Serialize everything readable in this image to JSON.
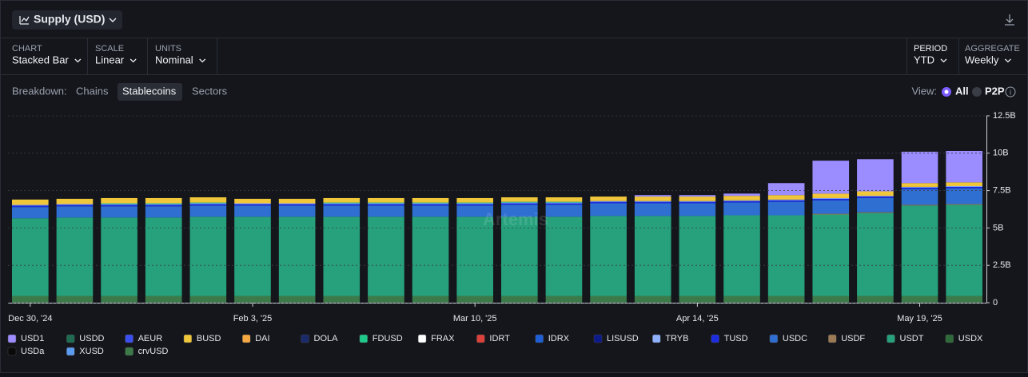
{
  "ui": {
    "title": "Supply (USD)",
    "controls": [
      {
        "label": "CHART",
        "value": "Stacked Bar"
      },
      {
        "label": "SCALE",
        "value": "Linear"
      },
      {
        "label": "UNITS",
        "value": "Nominal"
      },
      {
        "label": "PERIOD",
        "value": "YTD"
      },
      {
        "label": "AGGREGATE",
        "value": "Weekly"
      }
    ],
    "breakdown_label": "Breakdown:",
    "breakdown_options": [
      "Chains",
      "Stablecoins",
      "Sectors"
    ],
    "view_label": "View:",
    "view_options": [
      "All",
      "P2P"
    ],
    "watermark": "Artemis"
  },
  "chart_data": {
    "type": "stacked_bar",
    "categories": [
      "Dec 30, '24",
      null,
      null,
      null,
      null,
      "Feb 3, '25",
      null,
      null,
      null,
      null,
      "Mar 10, '25",
      null,
      null,
      null,
      null,
      "Apr 14, '25",
      null,
      null,
      null,
      null,
      "May 19, '25",
      null
    ],
    "ylim": [
      0,
      12.5
    ],
    "yticks": [
      0,
      {
        "value": 2.5,
        "label": "2.5B"
      },
      {
        "value": 5,
        "label": "5B"
      },
      {
        "value": 7.5,
        "label": "7.5B"
      },
      {
        "value": 10,
        "label": "10B"
      },
      {
        "value": 12.5,
        "label": "12.5B"
      }
    ],
    "grid": true,
    "series": [
      {
        "name": "USD1",
        "color": "#9b8cff",
        "values": [
          0,
          0,
          0,
          0,
          0,
          0,
          0,
          0,
          0,
          0,
          0,
          0,
          0,
          0,
          0.1,
          0.1,
          0.15,
          0.8,
          2.2,
          2.15,
          2.1,
          2.1
        ]
      },
      {
        "name": "USDD",
        "color": "#1f6b52",
        "values": [
          0,
          0,
          0,
          0,
          0,
          0,
          0,
          0,
          0,
          0,
          0,
          0,
          0,
          0,
          0,
          0,
          0,
          0,
          0,
          0,
          0,
          0
        ]
      },
      {
        "name": "AEUR",
        "color": "#3b4ff0",
        "values": [
          0,
          0,
          0,
          0,
          0,
          0,
          0,
          0,
          0,
          0,
          0,
          0,
          0,
          0,
          0,
          0,
          0,
          0,
          0,
          0,
          0,
          0
        ]
      },
      {
        "name": "BUSD",
        "color": "#f0c63b",
        "values": [
          0.35,
          0.35,
          0.35,
          0.35,
          0.35,
          0.3,
          0.3,
          0.3,
          0.3,
          0.3,
          0.3,
          0.3,
          0.3,
          0.3,
          0.3,
          0.3,
          0.3,
          0.3,
          0.3,
          0.3,
          0.25,
          0.25
        ]
      },
      {
        "name": "DAI",
        "color": "#f5a742",
        "values": [
          0,
          0,
          0,
          0,
          0,
          0,
          0,
          0,
          0,
          0,
          0,
          0,
          0,
          0,
          0,
          0,
          0,
          0,
          0,
          0,
          0,
          0
        ]
      },
      {
        "name": "DOLA",
        "color": "#1a2a6b",
        "values": [
          0,
          0,
          0,
          0,
          0,
          0,
          0,
          0,
          0,
          0,
          0,
          0,
          0,
          0,
          0,
          0,
          0,
          0,
          0,
          0,
          0,
          0
        ]
      },
      {
        "name": "FDUSD",
        "color": "#1ec98a",
        "values": [
          0,
          0,
          0.05,
          0.05,
          0.05,
          0,
          0,
          0.05,
          0.05,
          0.05,
          0.05,
          0.05,
          0.05,
          0,
          0,
          0,
          0,
          0,
          0,
          0,
          0,
          0
        ]
      },
      {
        "name": "FRAX",
        "color": "#ffffff",
        "values": [
          0,
          0,
          0,
          0,
          0,
          0,
          0,
          0,
          0,
          0,
          0,
          0,
          0,
          0,
          0,
          0,
          0,
          0,
          0,
          0,
          0,
          0
        ]
      },
      {
        "name": "IDRT",
        "color": "#d9413a",
        "values": [
          0,
          0,
          0,
          0,
          0,
          0,
          0,
          0,
          0,
          0,
          0,
          0,
          0,
          0,
          0,
          0,
          0,
          0,
          0,
          0,
          0,
          0
        ]
      },
      {
        "name": "IDRX",
        "color": "#1f5fd6",
        "values": [
          0,
          0,
          0,
          0,
          0,
          0,
          0,
          0,
          0,
          0,
          0,
          0,
          0,
          0,
          0,
          0,
          0,
          0,
          0,
          0,
          0,
          0
        ]
      },
      {
        "name": "LISUSD",
        "color": "#0c1a8a",
        "values": [
          0,
          0,
          0,
          0,
          0,
          0,
          0,
          0,
          0,
          0,
          0,
          0,
          0,
          0,
          0,
          0,
          0,
          0,
          0,
          0,
          0,
          0
        ]
      },
      {
        "name": "TRYB",
        "color": "#8fb0ff",
        "values": [
          0.05,
          0.05,
          0.05,
          0.05,
          0.05,
          0.05,
          0.05,
          0.05,
          0.05,
          0.05,
          0.05,
          0.05,
          0.05,
          0.05,
          0.05,
          0.05,
          0.05,
          0.05,
          0.05,
          0.05,
          0.05,
          0.05
        ]
      },
      {
        "name": "TUSD",
        "color": "#1c2de0",
        "values": [
          0.1,
          0.1,
          0.1,
          0.1,
          0.1,
          0.1,
          0.1,
          0.1,
          0.1,
          0.1,
          0.1,
          0.1,
          0.1,
          0.1,
          0.1,
          0.1,
          0.1,
          0.1,
          0.1,
          0.1,
          0.1,
          0.1
        ]
      },
      {
        "name": "USDC",
        "color": "#2f6fd1",
        "values": [
          0.75,
          0.75,
          0.75,
          0.75,
          0.75,
          0.75,
          0.75,
          0.75,
          0.75,
          0.75,
          0.75,
          0.8,
          0.8,
          0.85,
          0.85,
          0.85,
          0.85,
          0.9,
          0.9,
          0.95,
          1.05,
          1.05
        ]
      },
      {
        "name": "USDF",
        "color": "#9c7a55",
        "values": [
          0,
          0,
          0,
          0,
          0,
          0,
          0,
          0,
          0,
          0,
          0,
          0,
          0,
          0,
          0,
          0,
          0,
          0,
          0.05,
          0.05,
          0.05,
          0.05
        ]
      },
      {
        "name": "USDT",
        "color": "#26a17b",
        "values": [
          5.2,
          5.25,
          5.25,
          5.25,
          5.3,
          5.3,
          5.3,
          5.3,
          5.3,
          5.3,
          5.3,
          5.3,
          5.3,
          5.35,
          5.35,
          5.35,
          5.4,
          5.4,
          5.45,
          5.55,
          6.05,
          6.1
        ]
      },
      {
        "name": "USDX",
        "color": "#2f6b3a",
        "values": [
          0,
          0,
          0,
          0,
          0,
          0,
          0,
          0,
          0,
          0,
          0,
          0,
          0,
          0,
          0,
          0,
          0,
          0,
          0,
          0,
          0,
          0
        ]
      },
      {
        "name": "USDa",
        "color": "#0a0a0a",
        "values": [
          0,
          0,
          0,
          0,
          0,
          0,
          0,
          0,
          0,
          0,
          0,
          0,
          0,
          0,
          0,
          0,
          0,
          0,
          0,
          0,
          0,
          0
        ]
      },
      {
        "name": "XUSD",
        "color": "#5b9bf0",
        "values": [
          0,
          0,
          0,
          0,
          0,
          0,
          0,
          0,
          0,
          0,
          0,
          0,
          0,
          0,
          0,
          0,
          0,
          0,
          0,
          0,
          0,
          0
        ]
      },
      {
        "name": "crvUSD",
        "color": "#3d7a4a",
        "values": [
          0.45,
          0.45,
          0.45,
          0.45,
          0.45,
          0.45,
          0.45,
          0.45,
          0.45,
          0.45,
          0.45,
          0.45,
          0.45,
          0.45,
          0.45,
          0.45,
          0.45,
          0.45,
          0.45,
          0.45,
          0.45,
          0.45
        ]
      }
    ]
  }
}
